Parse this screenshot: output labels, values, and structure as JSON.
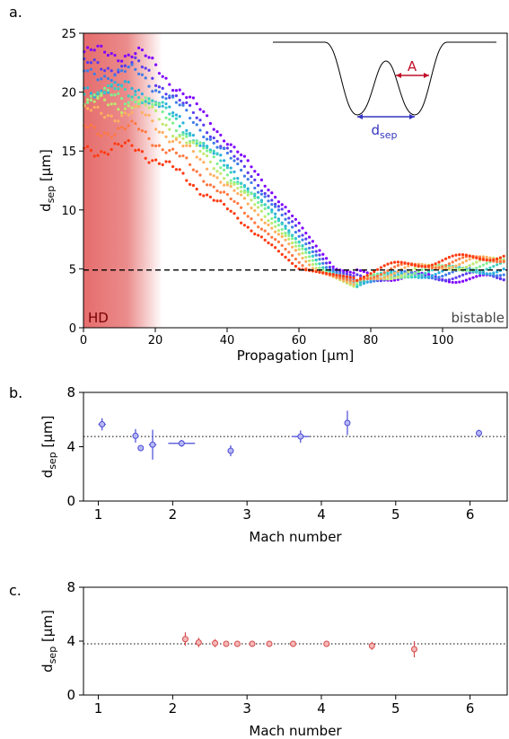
{
  "panels": {
    "a_letter": "a.",
    "b_letter": "b.",
    "c_letter": "c."
  },
  "colors": {
    "hd_region": "#e86a6a",
    "series_b": "#5a5ae6",
    "series_c": "#e65a5a",
    "inset_arrow_A": "#c0102a",
    "inset_arrow_dsep": "#3535c0"
  },
  "chart_data": [
    {
      "type": "scatter",
      "id": "panel-a",
      "xlabel": "Propagation [µm]",
      "ylabel_main": "d",
      "ylabel_sub": "sep",
      "ylabel_unit": " [µm]",
      "xlim": [
        0,
        118
      ],
      "ylim": [
        0,
        25
      ],
      "xticks": [
        0,
        20,
        40,
        60,
        80,
        100
      ],
      "yticks": [
        0,
        5,
        10,
        15,
        20,
        25
      ],
      "reference_line_y": 4.9,
      "annotations": {
        "left": "HD",
        "right": "bistable"
      },
      "inset": {
        "label_A": "A",
        "label_dsep_main": "d",
        "label_dsep_sub": "sep"
      },
      "series_colors": [
        "#7f00ff",
        "#5a3cf0",
        "#3f7ce8",
        "#2ab0dc",
        "#3ad0c0",
        "#80f090",
        "#c0e870",
        "#ffb060",
        "#ff7840",
        "#ff3a10"
      ],
      "series_start": [
        23.3,
        22.2,
        21.6,
        20.3,
        20.0,
        19.6,
        19.0,
        18.2,
        16.8,
        15.2
      ],
      "series_cross": [
        70,
        69,
        68,
        67,
        67,
        66,
        65,
        64,
        62,
        60
      ],
      "series_min": [
        4.6,
        4.3,
        4.0,
        3.8,
        3.6,
        3.5,
        3.4,
        3.6,
        3.9,
        4.2
      ],
      "series_end": [
        4.1,
        4.4,
        4.8,
        5.0,
        5.3,
        5.5,
        5.7,
        5.9,
        6.0,
        6.2
      ]
    },
    {
      "type": "scatter",
      "id": "panel-b",
      "xlabel": "Mach number",
      "ylabel_main": "d",
      "ylabel_sub": "sep",
      "ylabel_unit": " [µm]",
      "xlim": [
        0.8,
        6.5
      ],
      "ylim": [
        0,
        8
      ],
      "xticks": [
        1,
        2,
        3,
        4,
        5,
        6
      ],
      "yticks": [
        0,
        4,
        8
      ],
      "reference_line_y": 4.75,
      "points": [
        {
          "x": 1.05,
          "y": 5.65,
          "xerr": 0.05,
          "yerr": 0.45
        },
        {
          "x": 1.5,
          "y": 4.8,
          "xerr": 0.04,
          "yerr": 0.5
        },
        {
          "x": 1.57,
          "y": 3.9,
          "xerr": 0.03,
          "yerr": 0.1
        },
        {
          "x": 1.73,
          "y": 4.15,
          "xerr": 0.05,
          "yerr": 1.1
        },
        {
          "x": 2.12,
          "y": 4.25,
          "xerr": 0.18,
          "yerr": 0.25
        },
        {
          "x": 2.78,
          "y": 3.7,
          "xerr": 0.03,
          "yerr": 0.4
        },
        {
          "x": 3.72,
          "y": 4.75,
          "xerr": 0.12,
          "yerr": 0.45
        },
        {
          "x": 4.35,
          "y": 5.75,
          "xerr": 0.03,
          "yerr": 0.9
        },
        {
          "x": 6.12,
          "y": 5.0,
          "xerr": 0.03,
          "yerr": 0.25
        }
      ]
    },
    {
      "type": "scatter",
      "id": "panel-c",
      "xlabel": "Mach number",
      "ylabel_main": "d",
      "ylabel_sub": "sep",
      "ylabel_unit": " [µm]",
      "xlim": [
        0.8,
        6.5
      ],
      "ylim": [
        0,
        8
      ],
      "xticks": [
        1,
        2,
        3,
        4,
        5,
        6
      ],
      "yticks": [
        0,
        4,
        8
      ],
      "reference_line_y": 3.8,
      "points": [
        {
          "x": 2.17,
          "y": 4.15,
          "xerr": 0.03,
          "yerr": 0.5
        },
        {
          "x": 2.35,
          "y": 3.9,
          "xerr": 0.03,
          "yerr": 0.35
        },
        {
          "x": 2.57,
          "y": 3.85,
          "xerr": 0.03,
          "yerr": 0.3
        },
        {
          "x": 2.72,
          "y": 3.8,
          "xerr": 0.03,
          "yerr": 0.1
        },
        {
          "x": 2.87,
          "y": 3.8,
          "xerr": 0.03,
          "yerr": 0.1
        },
        {
          "x": 3.07,
          "y": 3.8,
          "xerr": 0.03,
          "yerr": 0.1
        },
        {
          "x": 3.3,
          "y": 3.8,
          "xerr": 0.03,
          "yerr": 0.1
        },
        {
          "x": 3.62,
          "y": 3.8,
          "xerr": 0.03,
          "yerr": 0.1
        },
        {
          "x": 4.07,
          "y": 3.8,
          "xerr": 0.03,
          "yerr": 0.1
        },
        {
          "x": 4.68,
          "y": 3.65,
          "xerr": 0.03,
          "yerr": 0.3
        },
        {
          "x": 5.25,
          "y": 3.4,
          "xerr": 0.03,
          "yerr": 0.6
        }
      ]
    }
  ]
}
